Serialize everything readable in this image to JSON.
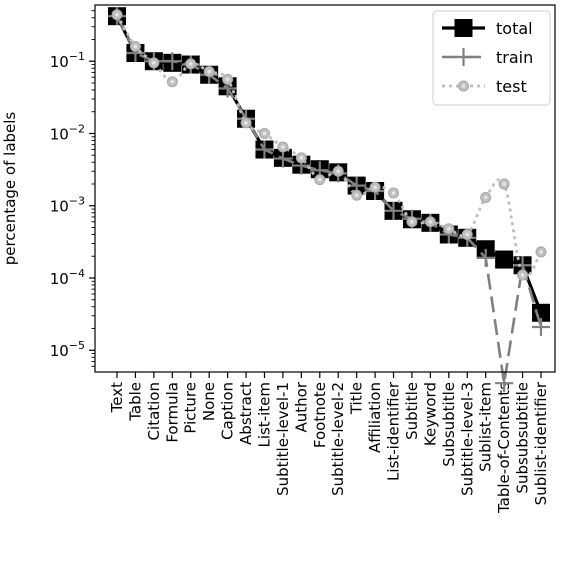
{
  "chart_data": {
    "type": "line",
    "title": "",
    "xlabel": "",
    "ylabel": "percentage of labels",
    "yscale": "log",
    "ylim": [
      5e-06,
      0.6
    ],
    "yticks": [
      {
        "value": 0.1,
        "base": "10",
        "exp": "−1"
      },
      {
        "value": 0.01,
        "base": "10",
        "exp": "−2"
      },
      {
        "value": 0.001,
        "base": "10",
        "exp": "−3"
      },
      {
        "value": 0.0001,
        "base": "10",
        "exp": "−4"
      },
      {
        "value": 1e-05,
        "base": "10",
        "exp": "−5"
      }
    ],
    "legend_position": "top-right",
    "grid": false,
    "categories": [
      "Text",
      "Table",
      "Citation",
      "Formula",
      "Picture",
      "None",
      "Caption",
      "Abstract",
      "List-item",
      "Subtitle-level-1",
      "Author",
      "Footnote",
      "Subtitle-level-2",
      "Title",
      "Affiliation",
      "List-identifier",
      "Subtitle",
      "Keyword",
      "Subsubtitle",
      "Subtitle-level-3",
      "Sublist-item",
      "Table-of-Contents",
      "Subsubsubtitle",
      "Sublist-identifier"
    ],
    "series": [
      {
        "name": "total",
        "color": "#000000",
        "values": [
          0.42,
          0.13,
          0.1,
          0.095,
          0.09,
          0.065,
          0.045,
          0.016,
          0.006,
          0.0046,
          0.0037,
          0.0032,
          0.0029,
          0.0019,
          0.0016,
          0.00085,
          0.00065,
          0.00058,
          0.0004,
          0.00036,
          0.00025,
          0.00018,
          0.00015,
          3.3e-05
        ]
      },
      {
        "name": "train",
        "color": "#808080",
        "values": [
          0.42,
          0.13,
          0.1,
          0.1,
          0.09,
          0.065,
          0.042,
          0.016,
          0.006,
          0.0045,
          0.0036,
          0.0031,
          0.0028,
          0.0019,
          0.0016,
          0.00085,
          0.00066,
          0.00058,
          0.0004,
          0.00036,
          0.00019,
          3.5e-06,
          0.00015,
          2.1e-05
        ]
      },
      {
        "name": "test",
        "color": "#bfbfbf",
        "values": [
          0.44,
          0.16,
          0.095,
          0.052,
          0.092,
          0.072,
          0.056,
          0.014,
          0.01,
          0.0065,
          0.0046,
          0.0023,
          0.003,
          0.0014,
          0.0018,
          0.0015,
          0.0006,
          0.0006,
          0.00048,
          0.0004,
          0.0013,
          0.002,
          0.00011,
          0.00023
        ]
      }
    ]
  }
}
